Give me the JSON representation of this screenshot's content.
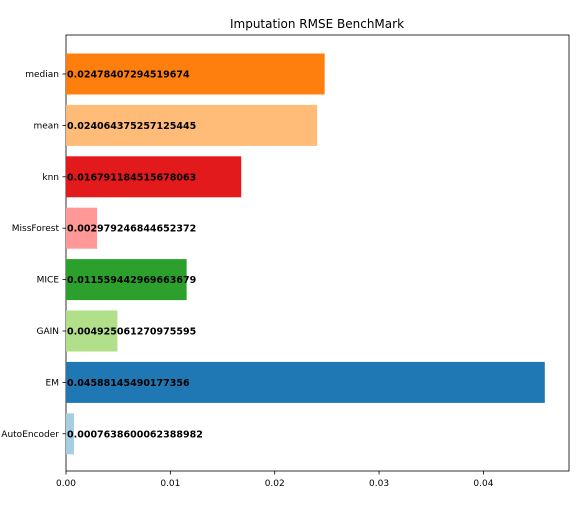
{
  "chart_data": {
    "type": "bar",
    "orientation": "horizontal",
    "title": "Imputation RMSE BenchMark",
    "xlabel": "",
    "ylabel": "",
    "xlim": [
      0,
      0.0482
    ],
    "xticks": [
      0,
      0.01,
      0.02,
      0.03,
      0.04
    ],
    "xtick_labels": [
      "0.00",
      "0.01",
      "0.02",
      "0.03",
      "0.04"
    ],
    "grid": false,
    "legend": "none",
    "categories": [
      "median",
      "mean",
      "knn",
      "MissForest",
      "MICE",
      "GAIN",
      "EM",
      "AutoEncoder"
    ],
    "values": [
      0.02478407294519674,
      0.024064375257125445,
      0.016791184515678063,
      0.002979246844652372,
      0.011559442969663679,
      0.004925061270975595,
      0.04588145490177356,
      0.0007638600062388982
    ],
    "value_labels": [
      "0.02478407294519674",
      "0.024064375257125445",
      "0.016791184515678063",
      "0.002979246844652372",
      "0.011559442969663679",
      "0.004925061270975595",
      "0.04588145490177356",
      "0.0007638600062388982"
    ],
    "colors": [
      "#ff7f0e",
      "#ffbb78",
      "#e31a1c",
      "#ff9896",
      "#2ca02c",
      "#b2df8a",
      "#1f78b4",
      "#a6cee3"
    ]
  }
}
